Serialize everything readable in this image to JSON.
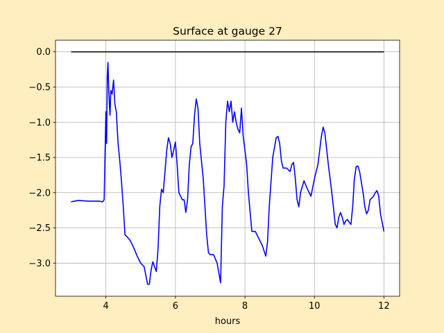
{
  "chart_data": {
    "type": "line",
    "title": "Surface at gauge 27",
    "xlabel": "hours",
    "xlim": [
      2.55,
      12.45
    ],
    "ylim": [
      -3.47,
      0.165
    ],
    "xticks": [
      4,
      6,
      8,
      10,
      12
    ],
    "yticks": [
      {
        "value": 0,
        "label": "0.0"
      },
      {
        "value": -0.5,
        "label": "−0.5"
      },
      {
        "value": -1,
        "label": "−1.0"
      },
      {
        "value": -1.5,
        "label": "−1.5"
      },
      {
        "value": -2,
        "label": "−2.0"
      },
      {
        "value": -2.5,
        "label": "−2.5"
      },
      {
        "value": -3,
        "label": "−3.0"
      }
    ],
    "grid": true,
    "series": [
      {
        "color": "black",
        "x": [
          3,
          12
        ],
        "values": [
          0,
          0
        ]
      },
      {
        "color": "blue",
        "x": [
          3.0,
          3.2,
          3.5,
          3.8,
          3.9,
          3.95,
          3.97,
          4.0,
          4.02,
          4.04,
          4.06,
          4.08,
          4.1,
          4.12,
          4.14,
          4.18,
          4.22,
          4.26,
          4.3,
          4.35,
          4.4,
          4.45,
          4.5,
          4.55,
          4.6,
          4.7,
          4.8,
          4.9,
          5.0,
          5.1,
          5.2,
          5.25,
          5.3,
          5.35,
          5.4,
          5.45,
          5.5,
          5.55,
          5.6,
          5.65,
          5.7,
          5.75,
          5.8,
          5.85,
          5.9,
          5.95,
          6.0,
          6.05,
          6.1,
          6.2,
          6.25,
          6.3,
          6.35,
          6.4,
          6.45,
          6.5,
          6.55,
          6.6,
          6.65,
          6.7,
          6.8,
          6.9,
          6.95,
          7.0,
          7.1,
          7.2,
          7.3,
          7.35,
          7.4,
          7.45,
          7.5,
          7.55,
          7.6,
          7.65,
          7.7,
          7.75,
          7.8,
          7.85,
          7.9,
          7.95,
          8.05,
          8.1,
          8.2,
          8.3,
          8.4,
          8.5,
          8.6,
          8.65,
          8.7,
          8.8,
          8.9,
          8.95,
          9.0,
          9.05,
          9.1,
          9.2,
          9.3,
          9.35,
          9.4,
          9.45,
          9.5,
          9.55,
          9.6,
          9.7,
          9.8,
          9.9,
          10.0,
          10.1,
          10.2,
          10.25,
          10.3,
          10.4,
          10.5,
          10.6,
          10.65,
          10.7,
          10.75,
          10.8,
          10.85,
          10.9,
          10.95,
          11.0,
          11.05,
          11.1,
          11.15,
          11.2,
          11.25,
          11.3,
          11.4,
          11.45,
          11.5,
          11.55,
          11.6,
          11.7,
          11.75,
          11.8,
          11.85,
          11.9,
          12.0
        ],
        "values": [
          -2.13,
          -2.11,
          -2.12,
          -2.12,
          -2.13,
          -2.1,
          -1.6,
          -0.85,
          -1.3,
          -0.35,
          -0.15,
          -0.5,
          -0.75,
          -0.9,
          -0.55,
          -0.6,
          -0.4,
          -0.75,
          -0.85,
          -1.3,
          -1.55,
          -1.85,
          -2.2,
          -2.6,
          -2.62,
          -2.68,
          -2.78,
          -2.9,
          -3.0,
          -3.05,
          -3.3,
          -3.3,
          -3.1,
          -2.98,
          -3.05,
          -3.12,
          -2.8,
          -2.2,
          -1.95,
          -2.0,
          -1.7,
          -1.4,
          -1.22,
          -1.3,
          -1.5,
          -1.4,
          -1.28,
          -1.6,
          -2.0,
          -2.1,
          -2.1,
          -2.28,
          -2.1,
          -1.6,
          -1.35,
          -1.3,
          -0.9,
          -0.67,
          -0.8,
          -1.3,
          -1.8,
          -2.6,
          -2.85,
          -2.88,
          -2.88,
          -3.0,
          -3.28,
          -2.2,
          -1.9,
          -1.0,
          -0.7,
          -0.85,
          -0.7,
          -1.0,
          -0.85,
          -1.0,
          -1.1,
          -1.15,
          -0.8,
          -1.2,
          -1.6,
          -2.0,
          -2.55,
          -2.55,
          -2.65,
          -2.75,
          -2.9,
          -2.7,
          -2.2,
          -1.5,
          -1.22,
          -1.2,
          -1.3,
          -1.55,
          -1.65,
          -1.65,
          -1.7,
          -1.6,
          -1.57,
          -1.8,
          -2.1,
          -2.2,
          -2.0,
          -1.83,
          -1.95,
          -2.05,
          -1.8,
          -1.6,
          -1.2,
          -1.07,
          -1.15,
          -1.6,
          -2.0,
          -2.45,
          -2.5,
          -2.35,
          -2.28,
          -2.35,
          -2.45,
          -2.4,
          -2.38,
          -2.42,
          -2.45,
          -2.2,
          -1.8,
          -1.63,
          -1.62,
          -1.7,
          -2.0,
          -2.2,
          -2.3,
          -2.25,
          -2.1,
          -2.05,
          -2.0,
          -1.97,
          -2.05,
          -2.3,
          -2.55
        ]
      }
    ]
  }
}
